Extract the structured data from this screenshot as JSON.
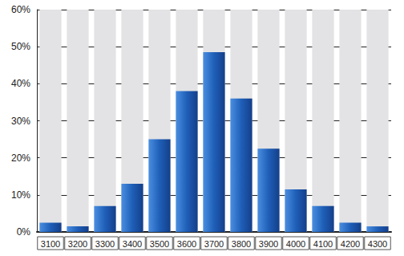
{
  "chart_data": {
    "type": "bar",
    "categories": [
      "3100",
      "3200",
      "3300",
      "3400",
      "3500",
      "3600",
      "3700",
      "3800",
      "3900",
      "4000",
      "4100",
      "4200",
      "4300"
    ],
    "values": [
      2.5,
      1.5,
      7,
      13,
      25,
      38,
      48.5,
      36,
      22.5,
      11.5,
      7,
      2.5,
      1.5
    ],
    "color": "#1f5fb8",
    "ylim": [
      0,
      60
    ],
    "yticks": [
      {
        "value": 0,
        "label": "0%"
      },
      {
        "value": 10,
        "label": "10%"
      },
      {
        "value": 20,
        "label": "20%"
      },
      {
        "value": 30,
        "label": "30%"
      },
      {
        "value": 40,
        "label": "40%"
      },
      {
        "value": 50,
        "label": "50%"
      },
      {
        "value": 60,
        "label": "60%"
      }
    ],
    "grid": true
  }
}
